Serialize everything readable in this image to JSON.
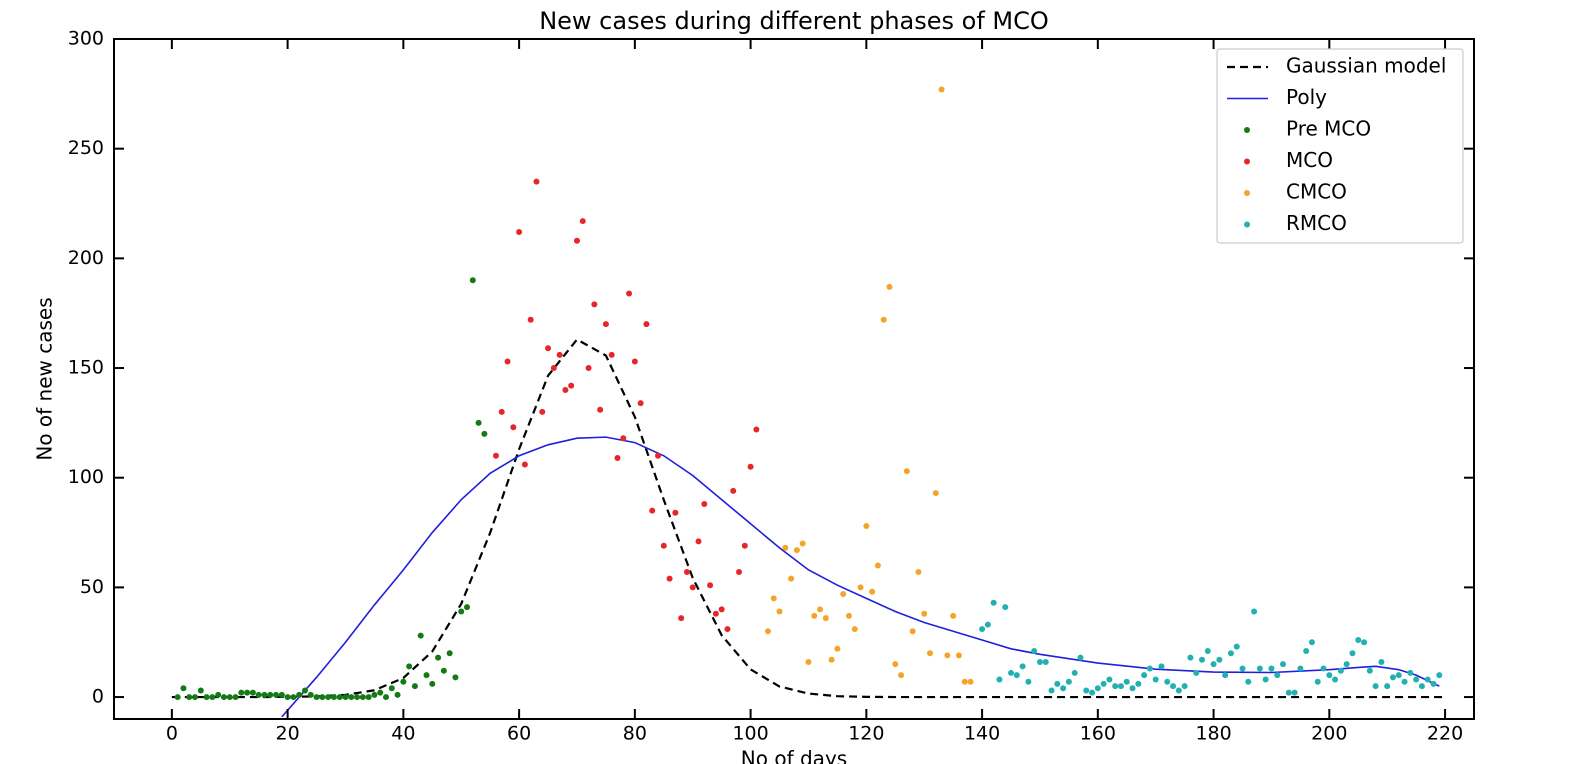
{
  "chart_data": {
    "type": "scatter",
    "title": "New cases during different phases of MCO",
    "x_label": "No of days",
    "y_label": "No of new cases",
    "xlim": [
      -10,
      225
    ],
    "ylim": [
      -10,
      300
    ],
    "xticks": [
      0,
      20,
      40,
      60,
      80,
      100,
      120,
      140,
      160,
      180,
      200,
      220
    ],
    "yticks": [
      0,
      50,
      100,
      150,
      200,
      250,
      300
    ],
    "legend": "upper right",
    "series": [
      {
        "name": "Gaussian model",
        "type": "line",
        "style": "dashed",
        "color": "#000000",
        "x": [
          0,
          5,
          10,
          15,
          20,
          25,
          30,
          35,
          40,
          45,
          50,
          55,
          60,
          65,
          70,
          75,
          80,
          85,
          90,
          95,
          100,
          105,
          110,
          115,
          120,
          125,
          130,
          135,
          140,
          145,
          150,
          155,
          160,
          165,
          170,
          175,
          180,
          185,
          190,
          195,
          200,
          205,
          210,
          215,
          220
        ],
        "values": [
          0,
          0,
          0,
          0,
          0.1,
          0.3,
          1,
          3.1,
          8.7,
          20.8,
          42.5,
          74.9,
          113,
          146.5,
          163,
          155.7,
          127.7,
          89.9,
          54.3,
          28.2,
          12.6,
          4.8,
          1.6,
          0.4,
          0.1,
          0,
          0,
          0,
          0,
          0,
          0,
          0,
          0,
          0,
          0,
          0,
          0,
          0,
          0,
          0,
          0,
          0,
          0,
          0,
          0
        ]
      },
      {
        "name": "Poly",
        "type": "line",
        "style": "solid",
        "color": "#1f1fe0",
        "x": [
          19,
          20,
          25,
          30,
          35,
          40,
          45,
          50,
          55,
          60,
          65,
          70,
          75,
          80,
          85,
          90,
          95,
          100,
          105,
          110,
          115,
          120,
          125,
          130,
          135,
          140,
          145,
          150,
          160,
          170,
          180,
          190,
          200,
          205,
          208,
          212,
          215,
          219
        ],
        "values": [
          -9,
          -6,
          9,
          25,
          42,
          58,
          75,
          90,
          102,
          110,
          115,
          118,
          118.5,
          116,
          110,
          101,
          90,
          79,
          68,
          58,
          51,
          45,
          39,
          34,
          30,
          26,
          22,
          19.5,
          15.5,
          12.7,
          11.4,
          11.2,
          12.5,
          13.5,
          14,
          12.5,
          10,
          5
        ]
      },
      {
        "name": "Pre MCO",
        "type": "scatter",
        "color": "#157a15",
        "x": [
          1,
          2,
          3,
          4,
          5,
          6,
          7,
          8,
          9,
          10,
          11,
          12,
          13,
          14,
          15,
          16,
          17,
          18,
          19,
          20,
          21,
          22,
          23,
          24,
          25,
          26,
          27,
          28,
          29,
          30,
          31,
          32,
          33,
          34,
          35,
          36,
          37,
          38,
          39,
          40,
          41,
          42,
          43,
          44,
          45,
          46,
          47,
          48,
          49,
          50,
          51,
          52,
          53,
          54
        ],
        "values": [
          0,
          4,
          0,
          0,
          3,
          0,
          0,
          1,
          0,
          0,
          0,
          2,
          2,
          2,
          1,
          1,
          1,
          1,
          1,
          0,
          0,
          1,
          3,
          1,
          0,
          0,
          0,
          0,
          0,
          0,
          0,
          0,
          0,
          0,
          1,
          2,
          0,
          4,
          1,
          7,
          14,
          5,
          28,
          10,
          6,
          18,
          12,
          20,
          9,
          39,
          41,
          190,
          125,
          120
        ]
      },
      {
        "name": "MCO",
        "type": "scatter",
        "color": "#e8262a",
        "x": [
          56,
          57,
          58,
          59,
          60,
          61,
          62,
          63,
          64,
          65,
          66,
          67,
          68,
          69,
          70,
          71,
          72,
          73,
          74,
          75,
          76,
          77,
          78,
          79,
          80,
          81,
          82,
          83,
          84,
          85,
          86,
          87,
          88,
          89,
          90,
          91,
          92,
          93,
          94,
          95,
          96,
          97,
          98,
          99,
          100,
          101
        ],
        "values": [
          110,
          130,
          153,
          123,
          212,
          106,
          172,
          235,
          130,
          159,
          150,
          156,
          140,
          142,
          208,
          217,
          150,
          179,
          131,
          170,
          156,
          109,
          118,
          184,
          153,
          134,
          170,
          85,
          110,
          69,
          54,
          84,
          36,
          57,
          50,
          71,
          88,
          51,
          38,
          40,
          31,
          94,
          57,
          69,
          105,
          122
        ]
      },
      {
        "name": "CMCO",
        "type": "scatter",
        "color": "#f5a42a",
        "x": [
          103,
          104,
          105,
          106,
          107,
          108,
          109,
          110,
          111,
          112,
          113,
          114,
          115,
          116,
          117,
          118,
          119,
          120,
          121,
          122,
          123,
          124,
          125,
          126,
          127,
          128,
          129,
          130,
          131,
          132,
          133,
          134,
          135,
          136,
          137,
          138
        ],
        "values": [
          30,
          45,
          39,
          68,
          54,
          67,
          70,
          16,
          37,
          40,
          36,
          17,
          22,
          47,
          37,
          31,
          50,
          78,
          48,
          60,
          172,
          187,
          15,
          10,
          103,
          30,
          57,
          38,
          20,
          93,
          277,
          19,
          37,
          19,
          7,
          7
        ]
      },
      {
        "name": "RMCO",
        "type": "scatter",
        "color": "#22b0b0",
        "x": [
          140,
          141,
          142,
          143,
          144,
          145,
          146,
          147,
          148,
          149,
          150,
          151,
          152,
          153,
          154,
          155,
          156,
          157,
          158,
          159,
          160,
          161,
          162,
          163,
          164,
          165,
          166,
          167,
          168,
          169,
          170,
          171,
          172,
          173,
          174,
          175,
          176,
          177,
          178,
          179,
          180,
          181,
          182,
          183,
          184,
          185,
          186,
          187,
          188,
          189,
          190,
          191,
          192,
          193,
          194,
          195,
          196,
          197,
          198,
          199,
          200,
          201,
          202,
          203,
          204,
          205,
          206,
          207,
          208,
          209,
          210,
          211,
          212,
          213,
          214,
          215,
          216,
          217,
          218,
          219
        ],
        "values": [
          31,
          33,
          43,
          8,
          41,
          11,
          10,
          14,
          7,
          21,
          16,
          16,
          3,
          6,
          4,
          7,
          11,
          18,
          3,
          2,
          4,
          6,
          8,
          5,
          5,
          7,
          4,
          6,
          10,
          13,
          8,
          14,
          7,
          5,
          3,
          5,
          18,
          11,
          17,
          21,
          15,
          17,
          10,
          20,
          23,
          13,
          7,
          39,
          13,
          8,
          13,
          10,
          15,
          2,
          2,
          13,
          21,
          25,
          7,
          13,
          10,
          8,
          12,
          15,
          20,
          26,
          25,
          12,
          5,
          16,
          5,
          9,
          10,
          7,
          11,
          8,
          5,
          8,
          6,
          10
        ]
      }
    ]
  }
}
